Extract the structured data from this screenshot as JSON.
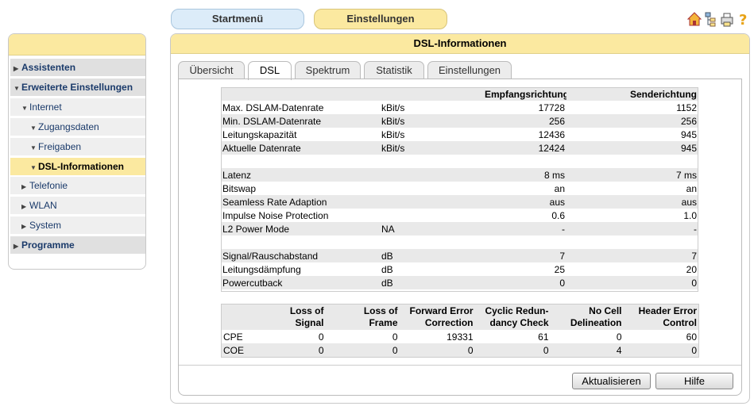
{
  "nav_tabs": [
    "Startmenü",
    "Einstellungen"
  ],
  "sidebar": [
    "Assistenten",
    "Erweiterte Einstellungen",
    "Internet",
    "Zugangsdaten",
    "Freigaben",
    "DSL-Informationen",
    "Telefonie",
    "WLAN",
    "System",
    "Programme"
  ],
  "panel_title": "DSL-Informationen",
  "tabs": [
    "Übersicht",
    "DSL",
    "Spektrum",
    "Statistik",
    "Einstellungen"
  ],
  "table1": {
    "header": [
      "Empfangsrichtung",
      "Senderichtung"
    ],
    "groups": [
      [
        {
          "label": "Max. DSLAM-Datenrate",
          "unit": "kBit/s",
          "values": [
            17728,
            1152
          ]
        },
        {
          "label": "Min. DSLAM-Datenrate",
          "unit": "kBit/s",
          "values": [
            256,
            256
          ]
        },
        {
          "label": "Leitungskapazität",
          "unit": "kBit/s",
          "values": [
            12436,
            945
          ]
        },
        {
          "label": "Aktuelle Datenrate",
          "unit": "kBit/s",
          "values": [
            12424,
            945
          ]
        }
      ],
      [
        {
          "label": "Latenz",
          "values": [
            "8 ms",
            "7 ms"
          ]
        },
        {
          "label": "Bitswap",
          "values": [
            "an",
            "an"
          ]
        },
        {
          "label": "Seamless Rate Adaption",
          "values": [
            "aus",
            "aus"
          ]
        },
        {
          "label": "Impulse Noise Protection",
          "values": [
            0.6,
            "1.0"
          ]
        },
        {
          "label": "L2 Power Mode",
          "unit": "NA",
          "values": [
            "-",
            "-"
          ]
        }
      ],
      [
        {
          "label": "Signal/Rauschabstand",
          "unit": "dB",
          "values": [
            7,
            7
          ]
        },
        {
          "label": "Leitungsdämpfung",
          "unit": "dB",
          "values": [
            25,
            20
          ]
        },
        {
          "label": "Powercutback",
          "unit": "dB",
          "values": [
            0,
            0
          ]
        }
      ]
    ]
  },
  "table2": {
    "header": [
      [
        "Loss of",
        "Signal"
      ],
      [
        "Loss of",
        "Frame"
      ],
      [
        "Forward Error",
        "Correction"
      ],
      [
        "Cyclic Redun-",
        "dancy Check"
      ],
      [
        "No Cell",
        "Delineation"
      ],
      [
        "Header Error",
        "Control"
      ]
    ],
    "rows": [
      {
        "label": "CPE",
        "values": [
          0,
          0,
          19331,
          61,
          0,
          60
        ]
      },
      {
        "label": "COE",
        "values": [
          0,
          0,
          0,
          0,
          4,
          0
        ]
      }
    ]
  },
  "buttons": [
    "Aktualisieren",
    "Hilfe"
  ]
}
